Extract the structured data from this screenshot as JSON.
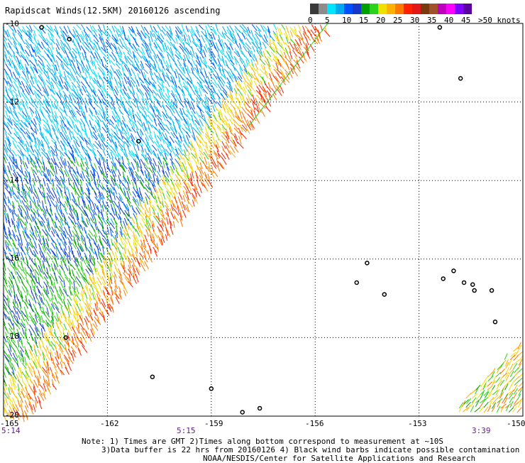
{
  "title": "Rapidscat Winds(12.5KM) 20160126 ascending",
  "map": {
    "lon_range": [
      -165,
      -150
    ],
    "lat_range": [
      -20,
      -10
    ],
    "lat_labels": [
      "-10",
      "-12",
      "-14",
      "-16",
      "-18",
      "-20"
    ],
    "lon_labels": [
      "-165",
      "-162",
      "-159",
      "-156",
      "-153",
      "-150"
    ],
    "grid_style": "dotted",
    "swath_edge_color": "#2ad21a",
    "land_color": "#000000"
  },
  "time_labels": [
    "5:14",
    "5:15",
    "3:39"
  ],
  "colorbar": {
    "labels": [
      "0",
      "5",
      "10",
      "15",
      "20",
      "25",
      "30",
      "35",
      "40",
      "45",
      ">50 knots"
    ],
    "colors": [
      "#3a3a3a",
      "#8c8c8c",
      "#00e5ff",
      "#00a8f0",
      "#0050ff",
      "#1838c8",
      "#00a000",
      "#2ad21a",
      "#f0e000",
      "#ffb000",
      "#ff7800",
      "#ff2000",
      "#e01818",
      "#7a3a10",
      "#a0522d",
      "#c000c0",
      "#ff00ff",
      "#8000ff",
      "#5a00a0"
    ]
  },
  "notes": [
    "Note: 1) Times are GMT 2)Times along bottom correspond to measurement at ~10S",
    "3)Data buffer is 22 hrs from 20160126 4) Black wind barbs indicate possible contamination",
    "NOAA/NESDIS/Center for Satellite Applications and Research"
  ]
}
